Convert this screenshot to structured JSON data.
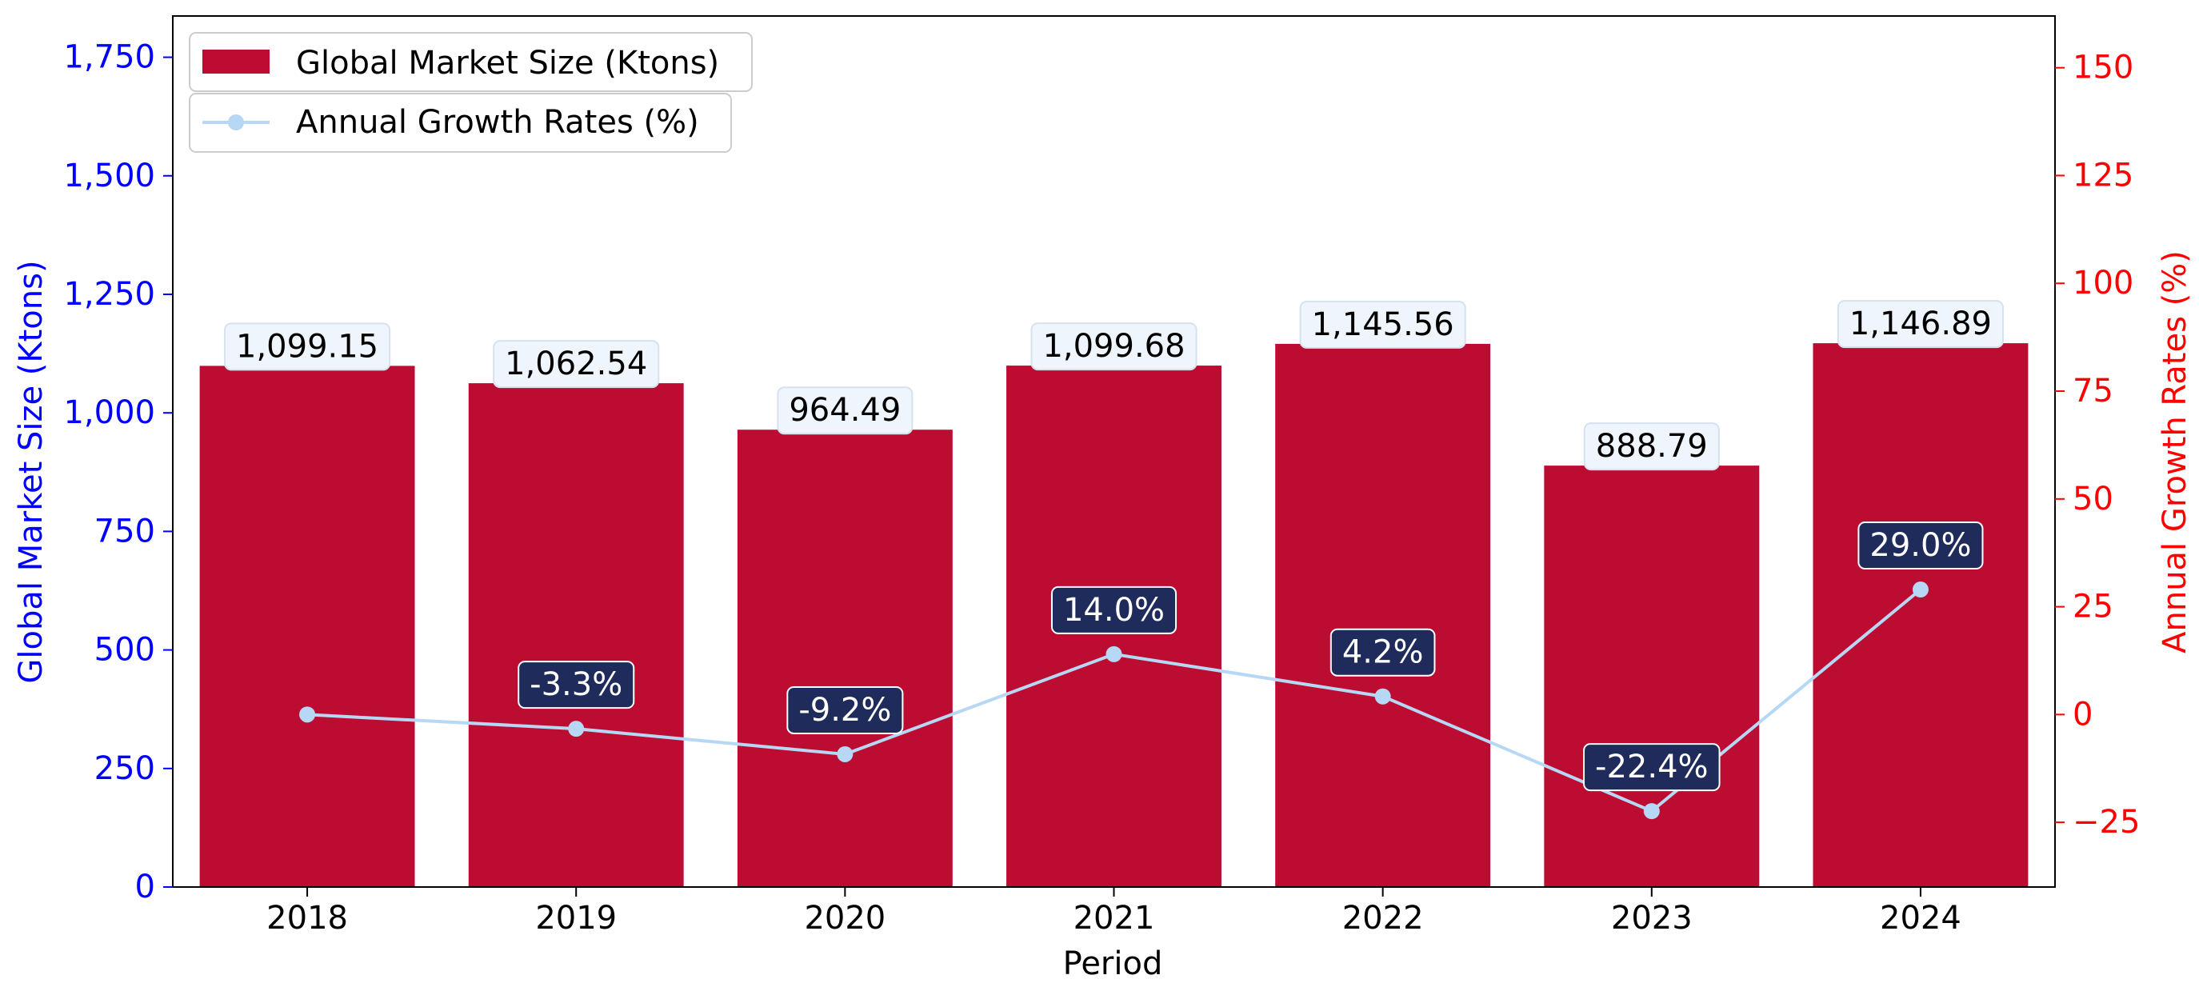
{
  "chart_data": {
    "type": "bar",
    "categories": [
      "2018",
      "2019",
      "2020",
      "2021",
      "2022",
      "2023",
      "2024"
    ],
    "xlabel": "Period",
    "ylabel": "Global Market Size (Ktons)",
    "y2label": "Annual Growth Rates (%)",
    "ylim": [
      0,
      1837
    ],
    "y2lim": [
      -40,
      162
    ],
    "yticks": [
      0,
      250,
      500,
      750,
      1000,
      1250,
      1500,
      1750
    ],
    "yticklabels": [
      "0",
      "250",
      "500",
      "750",
      "1,000",
      "1,250",
      "1,500",
      "1,750"
    ],
    "y2ticks": [
      -25,
      0,
      25,
      50,
      75,
      100,
      125,
      150
    ],
    "y2ticklabels": [
      "−25",
      "0",
      "25",
      "50",
      "75",
      "100",
      "125",
      "150"
    ],
    "grid": false,
    "legend_placement": "top-left",
    "series": [
      {
        "name": "Global Market Size (Ktons)",
        "type": "bar",
        "axis": "left",
        "values": [
          1099.15,
          1062.54,
          964.49,
          1099.68,
          1145.56,
          888.79,
          1146.89
        ],
        "labels": [
          "1,099.15",
          "1,062.54",
          "964.49",
          "1,099.68",
          "1,145.56",
          "888.79",
          "1,146.89"
        ],
        "color": "#bd0c32"
      },
      {
        "name": "Annual Growth Rates (%)",
        "type": "line",
        "axis": "right",
        "values": [
          0.0,
          -3.3,
          -9.2,
          14.0,
          4.2,
          -22.4,
          29.0
        ],
        "labels": [
          null,
          "-3.3%",
          "-9.2%",
          "14.0%",
          "4.2%",
          "-22.4%",
          "29.0%"
        ],
        "color": "#b7d8f5"
      }
    ],
    "colors": {
      "left_axis": "#0000ff",
      "right_axis": "#ff0000",
      "bar_label_bg": "#eef5fc",
      "rate_label_bg": "#1e2b5b"
    }
  }
}
